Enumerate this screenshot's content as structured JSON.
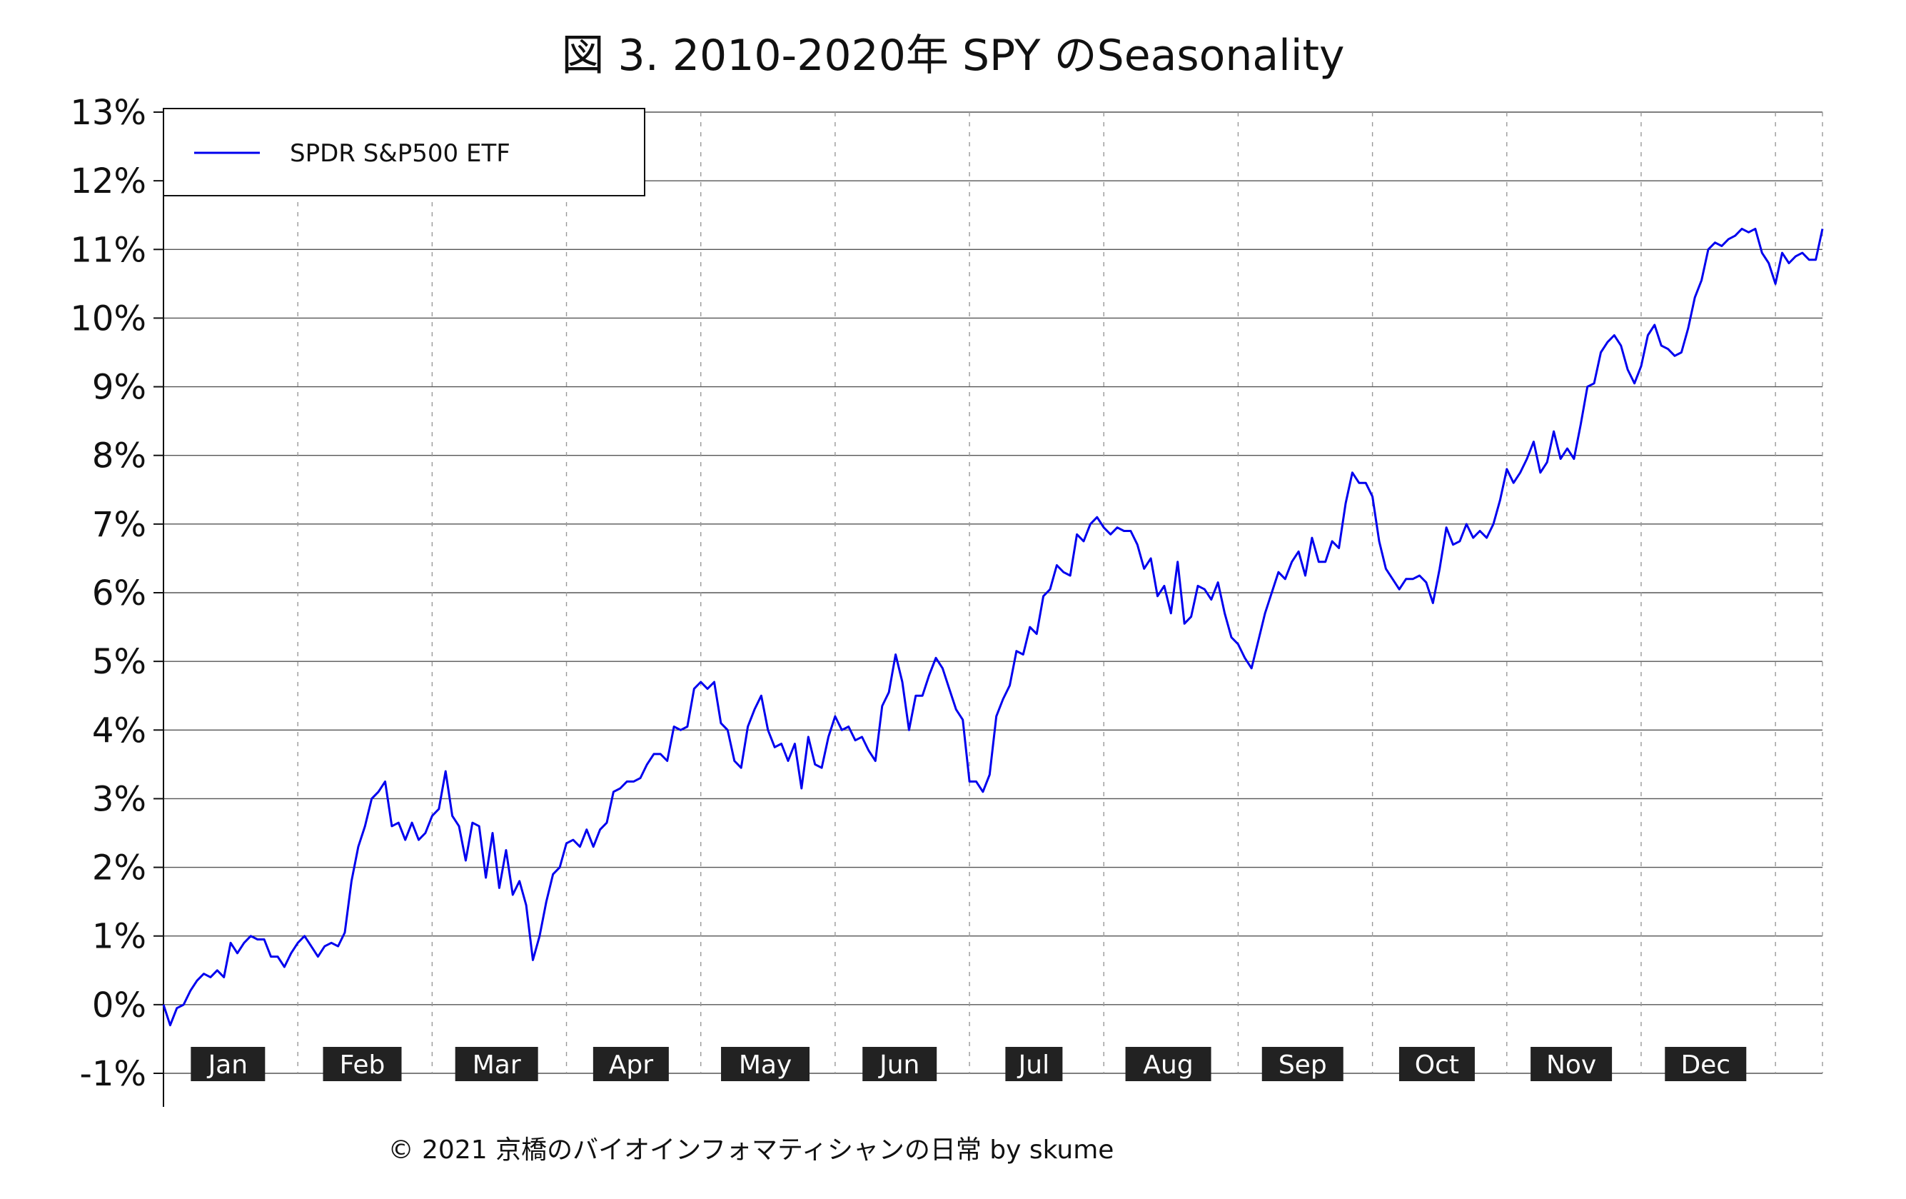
{
  "chart_data": {
    "type": "line",
    "title": "図 3. 2010-2020年 SPY のSeasonality",
    "xlabel": "",
    "ylabel": "",
    "ylim": [
      -1,
      13
    ],
    "y_ticks": [
      "13%",
      "12%",
      "11%",
      "10%",
      "9%",
      "8%",
      "7%",
      "6%",
      "5%",
      "4%",
      "3%",
      "2%",
      "1%",
      "0%",
      "-1%"
    ],
    "y_tick_values": [
      13,
      12,
      11,
      10,
      9,
      8,
      7,
      6,
      5,
      4,
      3,
      2,
      1,
      0,
      -1
    ],
    "months": [
      "Jan",
      "Feb",
      "Mar",
      "Apr",
      "May",
      "Jun",
      "Jul",
      "Aug",
      "Sep",
      "Oct",
      "Nov",
      "Dec"
    ],
    "grid": "horizontal solid, vertical dashed at month boundaries",
    "legend": "top-left",
    "footer": "© 2021 京橋のバイオインフォマティシャンの日常 by skume",
    "series": [
      {
        "name": "SPDR S&P500 ETF",
        "color": "#0000ee",
        "points": [
          [
            0,
            0.0
          ],
          [
            0.05,
            -0.3
          ],
          [
            0.1,
            -0.05
          ],
          [
            0.15,
            0.0
          ],
          [
            0.2,
            0.2
          ],
          [
            0.25,
            0.35
          ],
          [
            0.3,
            0.45
          ],
          [
            0.35,
            0.4
          ],
          [
            0.4,
            0.5
          ],
          [
            0.45,
            0.4
          ],
          [
            0.5,
            0.9
          ],
          [
            0.55,
            0.75
          ],
          [
            0.6,
            0.9
          ],
          [
            0.65,
            1.0
          ],
          [
            0.7,
            0.95
          ],
          [
            0.75,
            0.95
          ],
          [
            0.8,
            0.7
          ],
          [
            0.85,
            0.7
          ],
          [
            0.9,
            0.55
          ],
          [
            0.95,
            0.75
          ],
          [
            1.0,
            0.9
          ],
          [
            1.05,
            1.0
          ],
          [
            1.1,
            0.85
          ],
          [
            1.15,
            0.7
          ],
          [
            1.2,
            0.85
          ],
          [
            1.25,
            0.9
          ],
          [
            1.3,
            0.85
          ],
          [
            1.35,
            1.05
          ],
          [
            1.4,
            1.8
          ],
          [
            1.45,
            2.3
          ],
          [
            1.5,
            2.6
          ],
          [
            1.55,
            3.0
          ],
          [
            1.6,
            3.1
          ],
          [
            1.65,
            3.25
          ],
          [
            1.7,
            2.6
          ],
          [
            1.75,
            2.65
          ],
          [
            1.8,
            2.4
          ],
          [
            1.85,
            2.65
          ],
          [
            1.9,
            2.4
          ],
          [
            1.95,
            2.5
          ],
          [
            2.0,
            2.75
          ],
          [
            2.05,
            2.85
          ],
          [
            2.1,
            3.4
          ],
          [
            2.15,
            2.75
          ],
          [
            2.2,
            2.6
          ],
          [
            2.25,
            2.1
          ],
          [
            2.3,
            2.65
          ],
          [
            2.35,
            2.6
          ],
          [
            2.4,
            1.85
          ],
          [
            2.45,
            2.5
          ],
          [
            2.5,
            1.7
          ],
          [
            2.55,
            2.25
          ],
          [
            2.6,
            1.6
          ],
          [
            2.65,
            1.8
          ],
          [
            2.7,
            1.45
          ],
          [
            2.75,
            0.65
          ],
          [
            2.8,
            1.0
          ],
          [
            2.85,
            1.5
          ],
          [
            2.9,
            1.9
          ],
          [
            2.95,
            2.0
          ],
          [
            3.0,
            2.35
          ],
          [
            3.05,
            2.4
          ],
          [
            3.1,
            2.3
          ],
          [
            3.15,
            2.55
          ],
          [
            3.2,
            2.3
          ],
          [
            3.25,
            2.55
          ],
          [
            3.3,
            2.65
          ],
          [
            3.35,
            3.1
          ],
          [
            3.4,
            3.15
          ],
          [
            3.45,
            3.25
          ],
          [
            3.5,
            3.25
          ],
          [
            3.55,
            3.3
          ],
          [
            3.6,
            3.5
          ],
          [
            3.65,
            3.65
          ],
          [
            3.7,
            3.65
          ],
          [
            3.75,
            3.55
          ],
          [
            3.8,
            4.05
          ],
          [
            3.85,
            4.0
          ],
          [
            3.9,
            4.05
          ],
          [
            3.95,
            4.6
          ],
          [
            4.0,
            4.7
          ],
          [
            4.05,
            4.6
          ],
          [
            4.1,
            4.7
          ],
          [
            4.15,
            4.1
          ],
          [
            4.2,
            4.0
          ],
          [
            4.25,
            3.55
          ],
          [
            4.3,
            3.45
          ],
          [
            4.35,
            4.05
          ],
          [
            4.4,
            4.3
          ],
          [
            4.45,
            4.5
          ],
          [
            4.5,
            4.0
          ],
          [
            4.55,
            3.75
          ],
          [
            4.6,
            3.8
          ],
          [
            4.65,
            3.55
          ],
          [
            4.7,
            3.8
          ],
          [
            4.75,
            3.15
          ],
          [
            4.8,
            3.9
          ],
          [
            4.85,
            3.5
          ],
          [
            4.9,
            3.45
          ],
          [
            4.95,
            3.9
          ],
          [
            5.0,
            4.2
          ],
          [
            5.05,
            4.0
          ],
          [
            5.1,
            4.05
          ],
          [
            5.15,
            3.85
          ],
          [
            5.2,
            3.9
          ],
          [
            5.25,
            3.7
          ],
          [
            5.3,
            3.55
          ],
          [
            5.35,
            4.35
          ],
          [
            5.4,
            4.55
          ],
          [
            5.45,
            5.1
          ],
          [
            5.5,
            4.7
          ],
          [
            5.55,
            4.0
          ],
          [
            5.6,
            4.5
          ],
          [
            5.65,
            4.5
          ],
          [
            5.7,
            4.8
          ],
          [
            5.75,
            5.05
          ],
          [
            5.8,
            4.9
          ],
          [
            5.85,
            4.6
          ],
          [
            5.9,
            4.3
          ],
          [
            5.95,
            4.15
          ],
          [
            6.0,
            3.25
          ],
          [
            6.05,
            3.25
          ],
          [
            6.1,
            3.1
          ],
          [
            6.15,
            3.35
          ],
          [
            6.2,
            4.2
          ],
          [
            6.25,
            4.45
          ],
          [
            6.3,
            4.65
          ],
          [
            6.35,
            5.15
          ],
          [
            6.4,
            5.1
          ],
          [
            6.45,
            5.5
          ],
          [
            6.5,
            5.4
          ],
          [
            6.55,
            5.95
          ],
          [
            6.6,
            6.05
          ],
          [
            6.65,
            6.4
          ],
          [
            6.7,
            6.3
          ],
          [
            6.75,
            6.25
          ],
          [
            6.8,
            6.85
          ],
          [
            6.85,
            6.75
          ],
          [
            6.9,
            7.0
          ],
          [
            6.95,
            7.1
          ],
          [
            7.0,
            6.95
          ],
          [
            7.05,
            6.85
          ],
          [
            7.1,
            6.95
          ],
          [
            7.15,
            6.9
          ],
          [
            7.2,
            6.9
          ],
          [
            7.25,
            6.7
          ],
          [
            7.3,
            6.35
          ],
          [
            7.35,
            6.5
          ],
          [
            7.4,
            5.95
          ],
          [
            7.45,
            6.1
          ],
          [
            7.5,
            5.7
          ],
          [
            7.55,
            6.45
          ],
          [
            7.6,
            5.55
          ],
          [
            7.65,
            5.65
          ],
          [
            7.7,
            6.1
          ],
          [
            7.75,
            6.05
          ],
          [
            7.8,
            5.9
          ],
          [
            7.85,
            6.15
          ],
          [
            7.9,
            5.7
          ],
          [
            7.95,
            5.35
          ],
          [
            8.0,
            5.25
          ],
          [
            8.05,
            5.05
          ],
          [
            8.1,
            4.9
          ],
          [
            8.15,
            5.3
          ],
          [
            8.2,
            5.7
          ],
          [
            8.25,
            6.0
          ],
          [
            8.3,
            6.3
          ],
          [
            8.35,
            6.2
          ],
          [
            8.4,
            6.45
          ],
          [
            8.45,
            6.6
          ],
          [
            8.5,
            6.25
          ],
          [
            8.55,
            6.8
          ],
          [
            8.6,
            6.45
          ],
          [
            8.65,
            6.45
          ],
          [
            8.7,
            6.75
          ],
          [
            8.75,
            6.65
          ],
          [
            8.8,
            7.3
          ],
          [
            8.85,
            7.75
          ],
          [
            8.9,
            7.6
          ],
          [
            8.95,
            7.6
          ],
          [
            9.0,
            7.4
          ],
          [
            9.05,
            6.75
          ],
          [
            9.1,
            6.35
          ],
          [
            9.15,
            6.2
          ],
          [
            9.2,
            6.05
          ],
          [
            9.25,
            6.2
          ],
          [
            9.3,
            6.2
          ],
          [
            9.35,
            6.25
          ],
          [
            9.4,
            6.15
          ],
          [
            9.45,
            5.85
          ],
          [
            9.5,
            6.35
          ],
          [
            9.55,
            6.95
          ],
          [
            9.6,
            6.7
          ],
          [
            9.65,
            6.75
          ],
          [
            9.7,
            7.0
          ],
          [
            9.75,
            6.8
          ],
          [
            9.8,
            6.9
          ],
          [
            9.85,
            6.8
          ],
          [
            9.9,
            7.0
          ],
          [
            9.95,
            7.35
          ],
          [
            10.0,
            7.8
          ],
          [
            10.05,
            7.6
          ],
          [
            10.1,
            7.75
          ],
          [
            10.15,
            7.95
          ],
          [
            10.2,
            8.2
          ],
          [
            10.25,
            7.75
          ],
          [
            10.3,
            7.9
          ],
          [
            10.35,
            8.35
          ],
          [
            10.4,
            7.95
          ],
          [
            10.45,
            8.1
          ],
          [
            10.5,
            7.95
          ],
          [
            10.55,
            8.45
          ],
          [
            10.6,
            9.0
          ],
          [
            10.65,
            9.05
          ],
          [
            10.7,
            9.5
          ],
          [
            10.75,
            9.65
          ],
          [
            10.8,
            9.75
          ],
          [
            10.85,
            9.6
          ],
          [
            10.9,
            9.25
          ],
          [
            10.95,
            9.05
          ],
          [
            11.0,
            9.3
          ],
          [
            11.05,
            9.75
          ],
          [
            11.1,
            9.9
          ],
          [
            11.15,
            9.6
          ],
          [
            11.2,
            9.55
          ],
          [
            11.25,
            9.45
          ],
          [
            11.3,
            9.5
          ],
          [
            11.35,
            9.85
          ],
          [
            11.4,
            10.3
          ],
          [
            11.45,
            10.55
          ],
          [
            11.5,
            11.0
          ],
          [
            11.55,
            11.1
          ],
          [
            11.6,
            11.05
          ],
          [
            11.65,
            11.15
          ],
          [
            11.7,
            11.2
          ],
          [
            11.75,
            11.3
          ],
          [
            11.8,
            11.25
          ],
          [
            11.85,
            11.3
          ],
          [
            11.9,
            10.95
          ],
          [
            11.95,
            10.8
          ],
          [
            12.0,
            10.5
          ],
          [
            12.05,
            10.95
          ],
          [
            12.1,
            10.8
          ],
          [
            12.15,
            10.9
          ],
          [
            12.2,
            10.95
          ],
          [
            12.25,
            10.85
          ],
          [
            12.3,
            10.85
          ],
          [
            12.35,
            11.3
          ]
        ]
      }
    ]
  }
}
